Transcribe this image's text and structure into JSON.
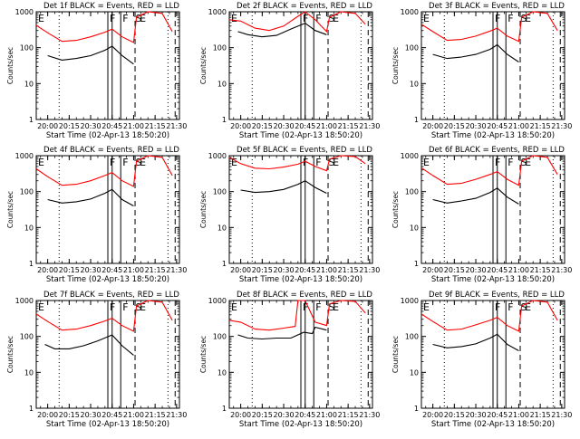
{
  "colors": {
    "background": "#ffffff",
    "axis": "#000000",
    "events": "#000000",
    "lld": "#ff0000"
  },
  "chart_data": [
    {
      "type": "line",
      "title": "Det 1f BLACK = Events, RED = LLD",
      "xlabel": "Start Time (02-Apr-13 18:50:20)",
      "ylabel": "Counts/sec",
      "yscale": "log",
      "ylim": [
        1,
        1000
      ],
      "yticks": [
        "1",
        "10",
        "100",
        "1000"
      ],
      "xticks": [
        "20:00",
        "20:15",
        "20:30",
        "20:45",
        "21:00",
        "21:15",
        "21:30"
      ],
      "xlim": [
        "19:52",
        "21:32"
      ],
      "grid": false,
      "legend": "title",
      "markers": {
        "dotted": [
          "20:08",
          "21:24"
        ],
        "solid": [
          "20:42",
          "20:45",
          "20:51"
        ],
        "dashed": [
          "21:01",
          "21:29"
        ],
        "letters": [
          "E",
          "F",
          "F",
          "S",
          "E"
        ]
      },
      "series": [
        {
          "name": "Events",
          "color": "#000000",
          "x": [
            "20:00",
            "20:10",
            "20:20",
            "20:30",
            "20:40",
            "20:45",
            "20:52",
            "21:00"
          ],
          "y": [
            60,
            45,
            50,
            60,
            85,
            110,
            60,
            35
          ]
        },
        {
          "name": "LLD",
          "color": "#ff0000",
          "x": [
            "19:52",
            "20:00",
            "20:10",
            "20:20",
            "20:30",
            "20:40",
            "20:45",
            "20:52",
            "21:00",
            "21:02",
            "21:10",
            "21:20",
            "21:27"
          ],
          "y": [
            420,
            260,
            150,
            160,
            200,
            270,
            330,
            200,
            140,
            700,
            1000,
            900,
            280
          ]
        }
      ]
    },
    {
      "type": "line",
      "title": "Det 2f BLACK = Events, RED = LLD",
      "xlabel": "Start Time (02-Apr-13 18:50:20)",
      "ylabel": "Counts/sec",
      "yscale": "log",
      "ylim": [
        1,
        1000
      ],
      "yticks": [
        "1",
        "10",
        "100",
        "1000"
      ],
      "xticks": [
        "20:00",
        "20:15",
        "20:30",
        "20:45",
        "21:00",
        "21:15",
        "21:30"
      ],
      "xlim": [
        "19:52",
        "21:32"
      ],
      "grid": false,
      "legend": "title",
      "markers": {
        "dotted": [
          "20:08",
          "21:24"
        ],
        "solid": [
          "20:42",
          "20:45",
          "20:51"
        ],
        "dashed": [
          "21:01",
          "21:29"
        ],
        "letters": [
          "E",
          "F",
          "F",
          "S",
          "E"
        ]
      },
      "series": [
        {
          "name": "Events",
          "color": "#000000",
          "x": [
            "19:58",
            "20:05",
            "20:15",
            "20:25",
            "20:35",
            "20:45",
            "20:52",
            "21:00"
          ],
          "y": [
            280,
            230,
            200,
            220,
            330,
            480,
            300,
            230
          ]
        },
        {
          "name": "LLD",
          "color": "#ff0000",
          "x": [
            "19:52",
            "20:00",
            "20:10",
            "20:20",
            "20:30",
            "20:40",
            "20:45",
            "20:52",
            "21:00",
            "21:02",
            "21:10",
            "21:20",
            "21:27"
          ],
          "y": [
            600,
            550,
            350,
            300,
            400,
            750,
            1100,
            600,
            280,
            700,
            1000,
            900,
            450
          ]
        }
      ]
    },
    {
      "type": "line",
      "title": "Det 3f BLACK = Events, RED = LLD",
      "xlabel": "Start Time (02-Apr-13 18:50:20)",
      "ylabel": "Counts/sec",
      "yscale": "log",
      "ylim": [
        1,
        1000
      ],
      "yticks": [
        "1",
        "10",
        "100",
        "1000"
      ],
      "xticks": [
        "20:00",
        "20:15",
        "20:30",
        "20:45",
        "21:00",
        "21:15",
        "21:30"
      ],
      "xlim": [
        "19:52",
        "21:32"
      ],
      "grid": false,
      "legend": "title",
      "markers": {
        "dotted": [
          "20:08",
          "21:24"
        ],
        "solid": [
          "20:42",
          "20:45",
          "20:51"
        ],
        "dashed": [
          "21:01",
          "21:29"
        ],
        "letters": [
          "E",
          "F",
          "F",
          "S",
          "E"
        ]
      },
      "series": [
        {
          "name": "Events",
          "color": "#000000",
          "x": [
            "20:00",
            "20:10",
            "20:20",
            "20:30",
            "20:40",
            "20:45",
            "20:52",
            "21:00"
          ],
          "y": [
            65,
            50,
            55,
            65,
            90,
            120,
            65,
            40
          ]
        },
        {
          "name": "LLD",
          "color": "#ff0000",
          "x": [
            "19:52",
            "20:00",
            "20:10",
            "20:20",
            "20:30",
            "20:40",
            "20:45",
            "20:52",
            "21:00",
            "21:02",
            "21:10",
            "21:20",
            "21:27"
          ],
          "y": [
            450,
            280,
            160,
            170,
            210,
            290,
            350,
            210,
            150,
            700,
            1000,
            900,
            300
          ]
        }
      ]
    },
    {
      "type": "line",
      "title": "Det 4f BLACK = Events, RED = LLD",
      "xlabel": "Start Time (02-Apr-13 18:50:20)",
      "ylabel": "Counts/sec",
      "yscale": "log",
      "ylim": [
        1,
        1000
      ],
      "yticks": [
        "1",
        "10",
        "100",
        "1000"
      ],
      "xticks": [
        "20:00",
        "20:15",
        "20:30",
        "20:45",
        "21:00",
        "21:15",
        "21:30"
      ],
      "xlim": [
        "19:52",
        "21:32"
      ],
      "grid": false,
      "legend": "title",
      "markers": {
        "dotted": [
          "20:08",
          "21:24"
        ],
        "solid": [
          "20:42",
          "20:45",
          "20:51"
        ],
        "dashed": [
          "21:01",
          "21:29"
        ],
        "letters": [
          "E",
          "F",
          "F",
          "S",
          "E"
        ]
      },
      "series": [
        {
          "name": "Events",
          "color": "#000000",
          "x": [
            "20:00",
            "20:10",
            "20:20",
            "20:30",
            "20:40",
            "20:45",
            "20:52",
            "21:00"
          ],
          "y": [
            60,
            48,
            52,
            62,
            90,
            115,
            60,
            40
          ]
        },
        {
          "name": "LLD",
          "color": "#ff0000",
          "x": [
            "19:52",
            "20:00",
            "20:10",
            "20:20",
            "20:30",
            "20:40",
            "20:45",
            "20:52",
            "21:00",
            "21:02",
            "21:10",
            "21:20",
            "21:27"
          ],
          "y": [
            430,
            260,
            150,
            160,
            200,
            280,
            340,
            200,
            140,
            700,
            1000,
            900,
            280
          ]
        }
      ]
    },
    {
      "type": "line",
      "title": "Det 5f BLACK = Events, RED = LLD",
      "xlabel": "Start Time (02-Apr-13 18:50:20)",
      "ylabel": "Counts/sec",
      "yscale": "log",
      "ylim": [
        1,
        1000
      ],
      "yticks": [
        "1",
        "10",
        "100",
        "1000"
      ],
      "xticks": [
        "20:00",
        "20:15",
        "20:30",
        "20:45",
        "21:00",
        "21:15",
        "21:30"
      ],
      "xlim": [
        "19:52",
        "21:32"
      ],
      "grid": false,
      "legend": "title",
      "markers": {
        "dotted": [
          "20:08",
          "21:24"
        ],
        "solid": [
          "20:42",
          "20:45",
          "20:51"
        ],
        "dashed": [
          "21:01",
          "21:29"
        ],
        "letters": [
          "E",
          "F",
          "F",
          "S",
          "E"
        ]
      },
      "series": [
        {
          "name": "Events",
          "color": "#000000",
          "x": [
            "20:00",
            "20:10",
            "20:20",
            "20:30",
            "20:40",
            "20:45",
            "20:52",
            "21:00"
          ],
          "y": [
            110,
            95,
            100,
            115,
            160,
            200,
            130,
            90
          ]
        },
        {
          "name": "LLD",
          "color": "#ff0000",
          "x": [
            "19:52",
            "20:00",
            "20:10",
            "20:20",
            "20:30",
            "20:40",
            "20:45",
            "20:52",
            "21:00",
            "21:02",
            "21:10",
            "21:20",
            "21:27"
          ],
          "y": [
            900,
            600,
            450,
            430,
            480,
            580,
            700,
            500,
            380,
            800,
            1000,
            950,
            600
          ]
        }
      ]
    },
    {
      "type": "line",
      "title": "Det 6f BLACK = Events, RED = LLD",
      "xlabel": "Start Time (02-Apr-13 18:50:20)",
      "ylabel": "Counts/sec",
      "yscale": "log",
      "ylim": [
        1,
        1000
      ],
      "yticks": [
        "1",
        "10",
        "100",
        "1000"
      ],
      "xticks": [
        "20:00",
        "20:15",
        "20:30",
        "20:45",
        "21:00",
        "21:15",
        "21:30"
      ],
      "xlim": [
        "19:52",
        "21:32"
      ],
      "grid": false,
      "legend": "title",
      "markers": {
        "dotted": [
          "20:08",
          "21:24"
        ],
        "solid": [
          "20:42",
          "20:45",
          "20:51"
        ],
        "dashed": [
          "21:01",
          "21:29"
        ],
        "letters": [
          "E",
          "F",
          "F",
          "S",
          "E"
        ]
      },
      "series": [
        {
          "name": "Events",
          "color": "#000000",
          "x": [
            "20:00",
            "20:10",
            "20:20",
            "20:30",
            "20:40",
            "20:45",
            "20:52",
            "21:00"
          ],
          "y": [
            60,
            48,
            55,
            65,
            95,
            125,
            70,
            45
          ]
        },
        {
          "name": "LLD",
          "color": "#ff0000",
          "x": [
            "19:52",
            "20:00",
            "20:10",
            "20:20",
            "20:30",
            "20:40",
            "20:45",
            "20:52",
            "21:00",
            "21:02",
            "21:10",
            "21:20",
            "21:27"
          ],
          "y": [
            460,
            280,
            160,
            170,
            220,
            300,
            360,
            220,
            150,
            700,
            1000,
            900,
            300
          ]
        }
      ]
    },
    {
      "type": "line",
      "title": "Det 7f BLACK = Events, RED = LLD",
      "xlabel": "Start Time (02-Apr-13 18:50:20)",
      "ylabel": "Counts/sec",
      "yscale": "log",
      "ylim": [
        1,
        1000
      ],
      "yticks": [
        "1",
        "10",
        "100",
        "1000"
      ],
      "xticks": [
        "20:00",
        "20:15",
        "20:30",
        "20:45",
        "21:00",
        "21:15",
        "21:30"
      ],
      "xlim": [
        "19:52",
        "21:32"
      ],
      "grid": false,
      "legend": "title",
      "markers": {
        "dotted": [
          "20:08",
          "21:24"
        ],
        "solid": [
          "20:42",
          "20:45",
          "20:51"
        ],
        "dashed": [
          "21:01",
          "21:29"
        ],
        "letters": [
          "E",
          "F",
          "F",
          "S",
          "E"
        ]
      },
      "series": [
        {
          "name": "Events",
          "color": "#000000",
          "x": [
            "19:58",
            "20:05",
            "20:15",
            "20:25",
            "20:35",
            "20:45",
            "20:52",
            "21:00"
          ],
          "y": [
            60,
            45,
            45,
            55,
            75,
            110,
            55,
            30
          ]
        },
        {
          "name": "LLD",
          "color": "#ff0000",
          "x": [
            "19:52",
            "20:00",
            "20:10",
            "20:20",
            "20:30",
            "20:40",
            "20:45",
            "20:52",
            "21:00",
            "21:02",
            "21:10",
            "21:20",
            "21:27"
          ],
          "y": [
            420,
            260,
            150,
            160,
            200,
            270,
            320,
            200,
            140,
            700,
            1000,
            900,
            280
          ]
        }
      ]
    },
    {
      "type": "line",
      "title": "Det 8f BLACK = Events, RED = LLD",
      "xlabel": "Start Time (02-Apr-13 18:50:20)",
      "ylabel": "Counts/sec",
      "yscale": "log",
      "ylim": [
        1,
        1000
      ],
      "yticks": [
        "1",
        "10",
        "100",
        "1000"
      ],
      "xticks": [
        "20:00",
        "20:15",
        "20:30",
        "20:45",
        "21:00",
        "21:15",
        "21:30"
      ],
      "xlim": [
        "19:52",
        "21:32"
      ],
      "grid": false,
      "legend": "title",
      "markers": {
        "dotted": [
          "20:08",
          "21:24"
        ],
        "solid": [
          "20:42",
          "20:45",
          "20:51"
        ],
        "dashed": [
          "21:01",
          "21:29"
        ],
        "letters": [
          "E",
          "F",
          "F",
          "S",
          "E"
        ]
      },
      "series": [
        {
          "name": "Events",
          "color": "#000000",
          "x": [
            "19:58",
            "20:05",
            "20:15",
            "20:25",
            "20:35",
            "20:44",
            "20:50",
            "20:52",
            "21:00"
          ],
          "y": [
            110,
            90,
            85,
            90,
            90,
            130,
            120,
            180,
            150
          ]
        },
        {
          "name": "LLD",
          "color": "#ff0000",
          "x": [
            "19:52",
            "20:00",
            "20:10",
            "20:20",
            "20:30",
            "20:38",
            "20:40",
            "20:45",
            "20:52",
            "21:00",
            "21:02",
            "21:10",
            "21:20",
            "21:27"
          ],
          "y": [
            280,
            250,
            160,
            150,
            170,
            190,
            1000,
            1000,
            250,
            200,
            800,
            1000,
            950,
            450
          ]
        }
      ]
    },
    {
      "type": "line",
      "title": "Det 9f BLACK = Events, RED = LLD",
      "xlabel": "Start Time (02-Apr-13 18:50:20)",
      "ylabel": "Counts/sec",
      "yscale": "log",
      "ylim": [
        1,
        1000
      ],
      "yticks": [
        "1",
        "10",
        "100",
        "1000"
      ],
      "xticks": [
        "20:00",
        "20:15",
        "20:30",
        "20:45",
        "21:00",
        "21:15",
        "21:30"
      ],
      "xlim": [
        "19:52",
        "21:32"
      ],
      "grid": false,
      "legend": "title",
      "markers": {
        "dotted": [
          "20:08",
          "21:24"
        ],
        "solid": [
          "20:42",
          "20:45",
          "20:51"
        ],
        "dashed": [
          "21:01",
          "21:29"
        ],
        "letters": [
          "E",
          "F",
          "F",
          "S",
          "E"
        ]
      },
      "series": [
        {
          "name": "Events",
          "color": "#000000",
          "x": [
            "20:00",
            "20:10",
            "20:20",
            "20:30",
            "20:40",
            "20:45",
            "20:52",
            "21:00"
          ],
          "y": [
            60,
            48,
            52,
            62,
            90,
            115,
            60,
            40
          ]
        },
        {
          "name": "LLD",
          "color": "#ff0000",
          "x": [
            "19:52",
            "20:00",
            "20:10",
            "20:20",
            "20:30",
            "20:40",
            "20:45",
            "20:52",
            "21:00",
            "21:02",
            "21:10",
            "21:20",
            "21:27"
          ],
          "y": [
            420,
            260,
            150,
            160,
            210,
            280,
            340,
            200,
            140,
            700,
            1000,
            900,
            280
          ]
        }
      ]
    }
  ]
}
